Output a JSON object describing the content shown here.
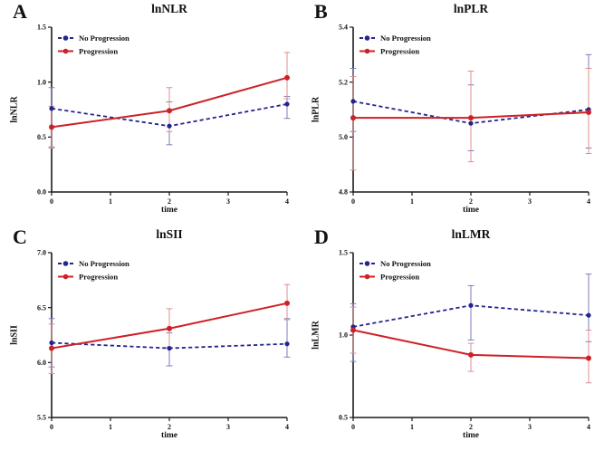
{
  "figure": {
    "background": "#ffffff",
    "colors": {
      "no_progression": "#24248e",
      "progression": "#cd2128",
      "no_progression_err": "#7d7dc2",
      "progression_err": "#e08f8f",
      "axis": "#1a1a1a",
      "text": "#111111"
    },
    "legend_labels": [
      "No Progression",
      "Progression"
    ]
  },
  "chart_data": [
    {
      "type": "line",
      "panel_letter": "A",
      "title": "lnNLR",
      "ylabel": "lnNLR",
      "xlabel": "time",
      "ylim": [
        0.0,
        1.5
      ],
      "yticks": [
        0.0,
        0.5,
        1.0,
        1.5
      ],
      "xlim": [
        0,
        4
      ],
      "xticks": [
        0,
        1,
        2,
        3,
        4
      ],
      "x": [
        0,
        2,
        4
      ],
      "series": [
        {
          "name": "No Progression",
          "style": "dashed",
          "color_key": "no_progression",
          "err_color_key": "no_progression_err",
          "values": [
            0.76,
            0.6,
            0.8
          ],
          "err_low": [
            0.41,
            0.43,
            0.67
          ],
          "err_high": [
            0.95,
            0.82,
            0.87
          ]
        },
        {
          "name": "Progression",
          "style": "solid",
          "color_key": "progression",
          "err_color_key": "progression_err",
          "values": [
            0.59,
            0.74,
            1.04
          ],
          "err_low": [
            0.4,
            0.55,
            0.85
          ],
          "err_high": [
            0.78,
            0.95,
            1.27
          ]
        }
      ]
    },
    {
      "type": "line",
      "panel_letter": "B",
      "title": "lnPLR",
      "ylabel": "lnPLR",
      "xlabel": "time",
      "ylim": [
        4.8,
        5.4
      ],
      "yticks": [
        4.8,
        5.0,
        5.2,
        5.4
      ],
      "xlim": [
        0,
        4
      ],
      "xticks": [
        0,
        1,
        2,
        3,
        4
      ],
      "x": [
        0,
        2,
        4
      ],
      "series": [
        {
          "name": "No Progression",
          "style": "dashed",
          "color_key": "no_progression",
          "err_color_key": "no_progression_err",
          "values": [
            5.13,
            5.05,
            5.1
          ],
          "err_low": [
            5.02,
            4.95,
            4.96
          ],
          "err_high": [
            5.25,
            5.19,
            5.3
          ]
        },
        {
          "name": "Progression",
          "style": "solid",
          "color_key": "progression",
          "err_color_key": "progression_err",
          "values": [
            5.07,
            5.07,
            5.09
          ],
          "err_low": [
            4.88,
            4.91,
            4.94
          ],
          "err_high": [
            5.22,
            5.24,
            5.25
          ]
        }
      ]
    },
    {
      "type": "line",
      "panel_letter": "C",
      "title": "lnSII",
      "ylabel": "lnSII",
      "xlabel": "time",
      "ylim": [
        5.5,
        7.0
      ],
      "yticks": [
        5.5,
        6.0,
        6.5,
        7.0
      ],
      "xlim": [
        0,
        4
      ],
      "xticks": [
        0,
        1,
        2,
        3,
        4
      ],
      "x": [
        0,
        2,
        4
      ],
      "series": [
        {
          "name": "No Progression",
          "style": "dashed",
          "color_key": "no_progression",
          "err_color_key": "no_progression_err",
          "values": [
            6.18,
            6.13,
            6.17
          ],
          "err_low": [
            5.96,
            5.97,
            6.05
          ],
          "err_high": [
            6.4,
            6.27,
            6.4
          ]
        },
        {
          "name": "Progression",
          "style": "solid",
          "color_key": "progression",
          "err_color_key": "progression_err",
          "values": [
            6.13,
            6.31,
            6.54
          ],
          "err_low": [
            5.9,
            6.14,
            6.39
          ],
          "err_high": [
            6.35,
            6.49,
            6.71
          ]
        }
      ]
    },
    {
      "type": "line",
      "panel_letter": "D",
      "title": "lnLMR",
      "ylabel": "lnLMR",
      "xlabel": "time",
      "ylim": [
        0.5,
        1.5
      ],
      "yticks": [
        0.5,
        1.0,
        1.5
      ],
      "xlim": [
        0,
        4
      ],
      "xticks": [
        0,
        1,
        2,
        3,
        4
      ],
      "x": [
        0,
        2,
        4
      ],
      "series": [
        {
          "name": "No Progression",
          "style": "dashed",
          "color_key": "no_progression",
          "err_color_key": "no_progression_err",
          "values": [
            1.05,
            1.18,
            1.12
          ],
          "err_low": [
            0.84,
            0.97,
            0.96
          ],
          "err_high": [
            1.19,
            1.3,
            1.37
          ]
        },
        {
          "name": "Progression",
          "style": "solid",
          "color_key": "progression",
          "err_color_key": "progression_err",
          "values": [
            1.03,
            0.88,
            0.86
          ],
          "err_low": [
            0.89,
            0.78,
            0.71
          ],
          "err_high": [
            1.17,
            0.95,
            1.03
          ]
        }
      ]
    }
  ]
}
